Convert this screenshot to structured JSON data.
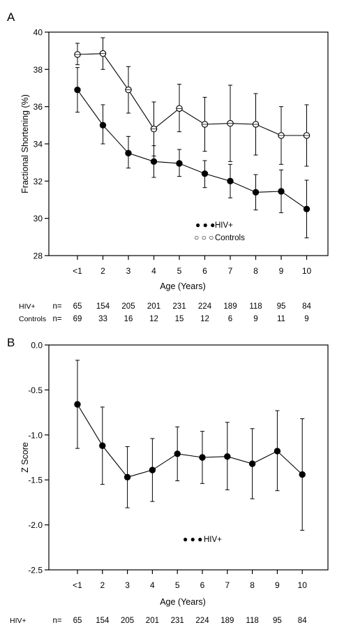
{
  "panels": [
    {
      "letter": "A",
      "chart_data": {
        "type": "line",
        "xlabel": "Age (Years)",
        "ylabel": "Fractional Shortening  (%)",
        "categories": [
          "<1",
          "2",
          "3",
          "4",
          "5",
          "6",
          "7",
          "8",
          "9",
          "10"
        ],
        "ylim": [
          28,
          40
        ],
        "yticks": [
          "28",
          "30",
          "32",
          "34",
          "36",
          "38",
          "40"
        ],
        "grid": false,
        "legend_position": "inside-bottom-right",
        "series": [
          {
            "name": "HIV+",
            "marker": "filled",
            "legend_symbol": "● ● ●",
            "values": [
              36.9,
              35.0,
              33.5,
              33.05,
              32.95,
              32.4,
              32.0,
              31.4,
              31.45,
              30.5
            ],
            "error": [
              [
                35.7,
                38.1
              ],
              [
                34.0,
                36.1
              ],
              [
                32.7,
                34.4
              ],
              [
                32.2,
                33.9
              ],
              [
                32.25,
                33.7
              ],
              [
                31.65,
                33.1
              ],
              [
                31.1,
                32.9
              ],
              [
                30.45,
                32.35
              ],
              [
                30.3,
                32.6
              ],
              [
                28.95,
                32.05
              ]
            ]
          },
          {
            "name": "Controls",
            "marker": "open",
            "legend_symbol": "○ ○ ○",
            "values": [
              38.8,
              38.85,
              36.9,
              34.8,
              35.9,
              35.05,
              35.1,
              35.05,
              34.45,
              34.45
            ],
            "error": [
              [
                38.25,
                39.4
              ],
              [
                38.0,
                39.7
              ],
              [
                35.65,
                38.15
              ],
              [
                33.35,
                36.25
              ],
              [
                34.65,
                37.2
              ],
              [
                33.6,
                36.5
              ],
              [
                33.05,
                37.15
              ],
              [
                33.4,
                36.7
              ],
              [
                32.9,
                36.0
              ],
              [
                32.8,
                36.1
              ]
            ]
          }
        ]
      },
      "n_table": {
        "header": "n=",
        "rows": [
          {
            "group": "HIV+",
            "counts": [
              "65",
              "154",
              "205",
              "201",
              "231",
              "224",
              "189",
              "118",
              "95",
              "84"
            ]
          },
          {
            "group": "Controls",
            "counts": [
              "69",
              "33",
              "16",
              "12",
              "15",
              "12",
              "6",
              "9",
              "11",
              "9"
            ]
          }
        ]
      }
    },
    {
      "letter": "B",
      "chart_data": {
        "type": "line",
        "xlabel": "Age (Years)",
        "ylabel": "Z Score",
        "categories": [
          "<1",
          "2",
          "3",
          "4",
          "5",
          "6",
          "7",
          "8",
          "9",
          "10"
        ],
        "ylim": [
          -2.5,
          0.0
        ],
        "yticks": [
          "-2.5",
          "-2.0",
          "-1.5",
          "-1.0",
          "-0.5",
          "0.0"
        ],
        "grid": false,
        "legend_position": "inside-bottom-center",
        "series": [
          {
            "name": "HIV+",
            "marker": "filled",
            "legend_symbol": "● ● ●",
            "values": [
              -0.66,
              -1.12,
              -1.47,
              -1.39,
              -1.21,
              -1.25,
              -1.24,
              -1.32,
              -1.18,
              -1.44
            ],
            "error": [
              [
                -1.15,
                -0.17
              ],
              [
                -1.55,
                -0.69
              ],
              [
                -1.81,
                -1.13
              ],
              [
                -1.74,
                -1.04
              ],
              [
                -1.51,
                -0.91
              ],
              [
                -1.54,
                -0.96
              ],
              [
                -1.61,
                -0.86
              ],
              [
                -1.71,
                -0.93
              ],
              [
                -1.62,
                -0.73
              ],
              [
                -2.06,
                -0.82
              ]
            ]
          }
        ]
      },
      "n_table": {
        "header": "n=",
        "rows": [
          {
            "group": "HIV+",
            "counts": [
              "65",
              "154",
              "205",
              "201",
              "231",
              "224",
              "189",
              "118",
              "95",
              "84"
            ]
          }
        ]
      }
    }
  ]
}
